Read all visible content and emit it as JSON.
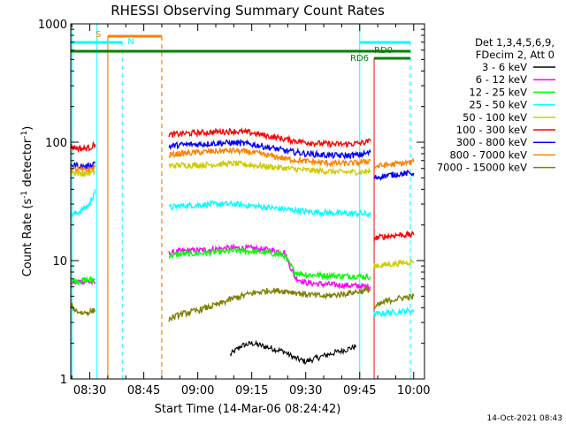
{
  "chart_data": {
    "type": "line",
    "title": "RHESSI Observing Summary Count Rates",
    "xlabel": "Start Time (14-Mar-06 08:24:42)",
    "ylabel_main": "Count Rate (s",
    "ylabel_sup1": "-1",
    "ylabel_mid": " detector",
    "ylabel_sup2": "-1",
    "ylabel_end": ")",
    "y_scale": "log",
    "ylim": [
      1,
      1000
    ],
    "xlim": [
      "08:24:42",
      "10:03:00"
    ],
    "x_ticks": [
      "08:30",
      "08:45",
      "09:00",
      "09:15",
      "09:30",
      "09:45",
      "10:00"
    ],
    "y_ticks": [
      "1",
      "10",
      "100",
      "1000"
    ],
    "legend_header": [
      "Det 1,3,4,5,6,9,",
      "FDecim 2, Att 0"
    ],
    "timestamp": "14-Oct-2021 08:43",
    "annotations": {
      "saa_label": "S",
      "night_label": "N",
      "rd0_label": "RD0",
      "rd6_label": "RD6"
    },
    "data_gaps": [
      [
        "08:36:00",
        "08:51:00"
      ]
    ],
    "series": [
      {
        "name": "3 - 6 keV",
        "color": "#000000",
        "segments": [
          {
            "x": [
              "09:09:00",
              "09:12:00",
              "09:15:00",
              "09:18:00",
              "09:21:00",
              "09:24:00",
              "09:27:00",
              "09:30:00",
              "09:33:00",
              "09:36:00",
              "09:39:00",
              "09:42:00",
              "09:44:00"
            ],
            "y": [
              1.6,
              1.9,
              2.0,
              1.9,
              1.8,
              1.7,
              1.5,
              1.4,
              1.5,
              1.6,
              1.7,
              1.8,
              1.9
            ]
          }
        ]
      },
      {
        "name": "6 - 12 keV",
        "color": "#ff00ff",
        "segments": [
          {
            "x": [
              "08:24:42",
              "08:26:00",
              "08:28:00",
              "08:30:00",
              "08:31:30"
            ],
            "y": [
              6.5,
              6.6,
              6.7,
              6.6,
              6.5
            ]
          },
          {
            "x": [
              "08:52:00",
              "08:55:00",
              "09:00:00",
              "09:05:00",
              "09:10:00",
              "09:15:00",
              "09:20:00",
              "09:24:00",
              "09:27:00",
              "09:30:00",
              "09:35:00",
              "09:40:00",
              "09:45:00",
              "09:48:00"
            ],
            "y": [
              11.5,
              12.0,
              12.2,
              12.5,
              12.8,
              12.7,
              12.3,
              11.8,
              7.2,
              6.5,
              6.3,
              6.2,
              6.1,
              6.0
            ]
          }
        ]
      },
      {
        "name": "12 - 25 keV",
        "color": "#00ff00",
        "segments": [
          {
            "x": [
              "08:24:42",
              "08:26:00",
              "08:28:00",
              "08:30:00",
              "08:31:30"
            ],
            "y": [
              6.8,
              6.7,
              6.8,
              6.9,
              6.9
            ]
          },
          {
            "x": [
              "08:52:00",
              "08:55:00",
              "09:00:00",
              "09:05:00",
              "09:10:00",
              "09:15:00",
              "09:20:00",
              "09:24:00",
              "09:27:00",
              "09:30:00",
              "09:35:00",
              "09:40:00",
              "09:45:00",
              "09:48:00"
            ],
            "y": [
              11.0,
              11.3,
              11.5,
              11.8,
              12.1,
              12.0,
              11.6,
              11.0,
              8.0,
              7.6,
              7.5,
              7.4,
              7.4,
              7.3
            ]
          }
        ]
      },
      {
        "name": "25 - 50 keV",
        "color": "#00ffff",
        "segments": [
          {
            "x": [
              "08:24:42",
              "08:26:00",
              "08:28:00",
              "08:30:00",
              "08:31:30"
            ],
            "y": [
              24,
              25,
              27,
              30,
              40
            ]
          },
          {
            "x": [
              "08:52:00",
              "08:55:00",
              "09:00:00",
              "09:05:00",
              "09:10:00",
              "09:15:00",
              "09:20:00",
              "09:25:00",
              "09:30:00",
              "09:35:00",
              "09:40:00",
              "09:45:00",
              "09:48:00"
            ],
            "y": [
              28,
              29,
              29.5,
              30,
              30,
              29,
              28,
              27,
              26,
              25.5,
              25,
              25,
              24.5
            ]
          },
          {
            "x": [
              "09:49:00",
              "09:52:00",
              "09:56:00",
              "10:00:00"
            ],
            "y": [
              3.5,
              3.6,
              3.7,
              3.8
            ]
          }
        ]
      },
      {
        "name": "50 - 100 keV",
        "color": "#cccc00",
        "segments": [
          {
            "x": [
              "08:24:42",
              "08:26:00",
              "08:28:00",
              "08:30:00",
              "08:31:30"
            ],
            "y": [
              56,
              55,
              54,
              55,
              57
            ]
          },
          {
            "x": [
              "08:52:00",
              "08:55:00",
              "09:00:00",
              "09:05:00",
              "09:10:00",
              "09:15:00",
              "09:20:00",
              "09:25:00",
              "09:30:00",
              "09:35:00",
              "09:40:00",
              "09:45:00",
              "09:48:00"
            ],
            "y": [
              63,
              64,
              64,
              65,
              66,
              64,
              62,
              60,
              58,
              57,
              56,
              56,
              57
            ]
          },
          {
            "x": [
              "09:49:00",
              "09:52:00",
              "09:56:00",
              "10:00:00"
            ],
            "y": [
              9.0,
              9.2,
              9.5,
              9.8
            ]
          }
        ]
      },
      {
        "name": "100 - 300 keV",
        "color": "#ff0000",
        "segments": [
          {
            "x": [
              "08:24:42",
              "08:26:00",
              "08:28:00",
              "08:30:00",
              "08:31:30"
            ],
            "y": [
              92,
              90,
              88,
              90,
              96
            ]
          },
          {
            "x": [
              "08:52:00",
              "08:55:00",
              "09:00:00",
              "09:05:00",
              "09:10:00",
              "09:15:00",
              "09:20:00",
              "09:25:00",
              "09:30:00",
              "09:35:00",
              "09:40:00",
              "09:45:00",
              "09:48:00"
            ],
            "y": [
              115,
              118,
              120,
              122,
              124,
              120,
              112,
              105,
              100,
              97,
              96,
              98,
              102
            ]
          },
          {
            "x": [
              "09:49:00",
              "09:52:00",
              "09:56:00",
              "10:00:00"
            ],
            "y": [
              15.5,
              16.0,
              16.5,
              16.5
            ]
          }
        ]
      },
      {
        "name": "300 - 800 keV",
        "color": "#0000ff",
        "segments": [
          {
            "x": [
              "08:24:42",
              "08:26:00",
              "08:28:00",
              "08:30:00",
              "08:31:30"
            ],
            "y": [
              65,
              64,
              62,
              63,
              68
            ]
          },
          {
            "x": [
              "08:52:00",
              "08:55:00",
              "09:00:00",
              "09:05:00",
              "09:10:00",
              "09:15:00",
              "09:20:00",
              "09:25:00",
              "09:30:00",
              "09:35:00",
              "09:40:00",
              "09:45:00",
              "09:48:00"
            ],
            "y": [
              92,
              95,
              96,
              98,
              99,
              96,
              90,
              84,
              80,
              78,
              77,
              78,
              82
            ]
          },
          {
            "x": [
              "09:49:00",
              "09:52:00",
              "09:56:00",
              "10:00:00"
            ],
            "y": [
              50,
              52,
              54,
              55
            ]
          }
        ]
      },
      {
        "name": "800 - 7000 keV",
        "color": "#ff8000",
        "segments": [
          {
            "x": [
              "08:24:42",
              "08:26:00",
              "08:28:00",
              "08:30:00",
              "08:31:30"
            ],
            "y": [
              60,
              59,
              58,
              59,
              62
            ]
          },
          {
            "x": [
              "08:52:00",
              "08:55:00",
              "09:00:00",
              "09:05:00",
              "09:10:00",
              "09:15:00",
              "09:20:00",
              "09:25:00",
              "09:30:00",
              "09:35:00",
              "09:40:00",
              "09:45:00",
              "09:48:00"
            ],
            "y": [
              78,
              80,
              82,
              84,
              85,
              82,
              77,
              72,
              69,
              67,
              66,
              67,
              70
            ]
          },
          {
            "x": [
              "09:49:00",
              "09:52:00",
              "09:56:00",
              "10:00:00"
            ],
            "y": [
              62,
              64,
              66,
              68
            ]
          }
        ]
      },
      {
        "name": "7000 - 15000 keV",
        "color": "#808000",
        "segments": [
          {
            "x": [
              "08:24:42",
              "08:26:00",
              "08:28:00",
              "08:30:00",
              "08:31:30"
            ],
            "y": [
              4.2,
              3.8,
              3.6,
              3.7,
              3.8
            ]
          },
          {
            "x": [
              "08:52:00",
              "08:55:00",
              "09:00:00",
              "09:05:00",
              "09:10:00",
              "09:15:00",
              "09:20:00",
              "09:25:00",
              "09:30:00",
              "09:35:00",
              "09:40:00",
              "09:45:00",
              "09:48:00"
            ],
            "y": [
              3.2,
              3.5,
              3.8,
              4.2,
              4.8,
              5.3,
              5.6,
              5.5,
              5.2,
              5.0,
              5.2,
              5.5,
              5.7
            ]
          },
          {
            "x": [
              "09:49:00",
              "09:52:00",
              "09:56:00",
              "10:00:00"
            ],
            "y": [
              4.0,
              4.5,
              4.8,
              5.0
            ]
          }
        ]
      }
    ]
  }
}
